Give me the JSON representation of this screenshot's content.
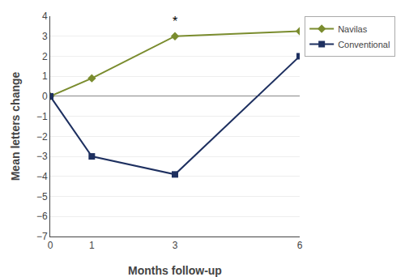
{
  "chart_data": {
    "type": "line",
    "x": [
      0,
      1,
      3,
      6
    ],
    "series": [
      {
        "name": "Navilas",
        "color": "#7a8c2e",
        "marker": "diamond",
        "values": [
          0,
          0.9,
          3.0,
          3.25
        ]
      },
      {
        "name": "Conventional",
        "color": "#1e3060",
        "marker": "square",
        "values": [
          0,
          -3.0,
          -3.9,
          2.0
        ]
      }
    ],
    "x_label": "Months follow-up",
    "y_label": "Mean letters change",
    "xlim": [
      0,
      6
    ],
    "xticks": [
      0,
      1,
      3,
      6
    ],
    "ylim": [
      -7,
      4
    ],
    "yticks": [
      {
        "value": -7,
        "label": "−7"
      },
      {
        "value": -6,
        "label": "−6"
      },
      {
        "value": -5,
        "label": "−5"
      },
      {
        "value": -4,
        "label": "−4"
      },
      {
        "value": -3,
        "label": "−3"
      },
      {
        "value": -2,
        "label": "−2"
      },
      {
        "value": -1,
        "label": "−1"
      },
      0,
      1,
      2,
      3,
      4
    ],
    "annotations": [
      {
        "text": "*",
        "x": 3,
        "y": 3.3
      }
    ],
    "grid": true,
    "legend": "upper right"
  }
}
